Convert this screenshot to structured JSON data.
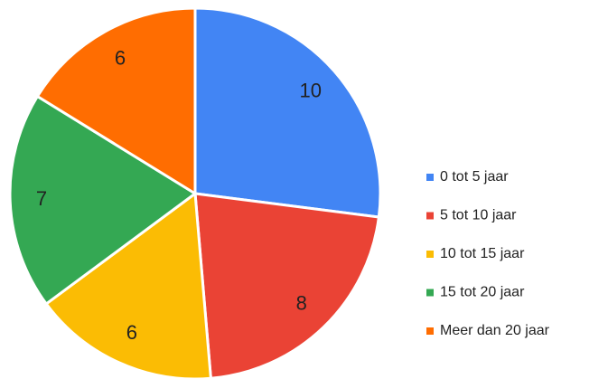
{
  "chart_data": {
    "type": "pie",
    "categories": [
      "0 tot 5 jaar",
      "5 tot 10 jaar",
      "10 tot 15 jaar",
      "15 tot 20 jaar",
      "Meer dan 20 jaar"
    ],
    "values": [
      10,
      8,
      6,
      7,
      6
    ],
    "colors": [
      "#4285f4",
      "#ea4335",
      "#fbbc04",
      "#34a853",
      "#ff6d01"
    ],
    "legend": "right"
  }
}
